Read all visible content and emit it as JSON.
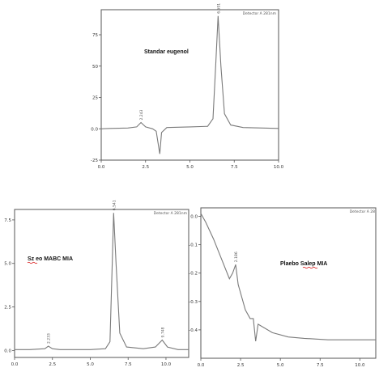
{
  "chart_data": [
    {
      "type": "line",
      "title": "Standar eugenol",
      "detector": "Detector A 281nm",
      "xlim": [
        0,
        10
      ],
      "ylim": [
        -25,
        95
      ],
      "xticks": [
        "0.0",
        "2.5",
        "5.0",
        "7.5",
        "10.0"
      ],
      "yticks": [
        "-25",
        "0.0",
        "25",
        "50",
        "75"
      ],
      "peak_labels": [
        {
          "text": "2.243",
          "x": 2.24,
          "y": 5
        },
        {
          "text": "6.591",
          "x": 6.59,
          "y": 90
        }
      ],
      "series": [
        {
          "values": [
            [
              0,
              0
            ],
            [
              0.5,
              0.3
            ],
            [
              1.5,
              0.6
            ],
            [
              2.0,
              1.5
            ],
            [
              2.24,
              5
            ],
            [
              2.5,
              1.5
            ],
            [
              2.9,
              0
            ],
            [
              3.1,
              -2
            ],
            [
              3.3,
              -20
            ],
            [
              3.4,
              -3
            ],
            [
              3.7,
              1
            ],
            [
              5.0,
              1.5
            ],
            [
              6.0,
              2
            ],
            [
              6.3,
              8
            ],
            [
              6.45,
              50
            ],
            [
              6.59,
              90
            ],
            [
              6.75,
              50
            ],
            [
              6.95,
              12
            ],
            [
              7.3,
              3
            ],
            [
              8.0,
              1
            ],
            [
              10.0,
              0.3
            ]
          ]
        }
      ]
    },
    {
      "type": "line",
      "title": "Sz eo MABC MIA",
      "detector": "Detector A 281nm",
      "xlim": [
        0,
        11.5
      ],
      "ylim": [
        -0.4,
        8.1
      ],
      "xticks": [
        "0.0",
        "2.5",
        "5.0",
        "7.5",
        "10.0"
      ],
      "yticks": [
        "0.0",
        "2.5",
        "5.0",
        "7.5"
      ],
      "peak_labels": [
        {
          "text": "2.233",
          "x": 2.23,
          "y": 0.25
        },
        {
          "text": "6.541",
          "x": 6.54,
          "y": 7.9
        },
        {
          "text": "9.748",
          "x": 9.75,
          "y": 0.6
        }
      ],
      "series": [
        {
          "values": [
            [
              0,
              0.05
            ],
            [
              1.0,
              0.05
            ],
            [
              2.0,
              0.1
            ],
            [
              2.23,
              0.25
            ],
            [
              2.5,
              0.1
            ],
            [
              3.0,
              0.05
            ],
            [
              5.0,
              0.05
            ],
            [
              6.0,
              0.1
            ],
            [
              6.3,
              0.5
            ],
            [
              6.45,
              5
            ],
            [
              6.54,
              7.9
            ],
            [
              6.7,
              5
            ],
            [
              6.95,
              1
            ],
            [
              7.4,
              0.2
            ],
            [
              8.5,
              0.1
            ],
            [
              9.3,
              0.2
            ],
            [
              9.75,
              0.6
            ],
            [
              10.1,
              0.2
            ],
            [
              10.8,
              0.05
            ],
            [
              11.5,
              0.05
            ]
          ]
        }
      ]
    },
    {
      "type": "line",
      "title": "Plaebo Salep MIA",
      "detector": "Detector A 28",
      "xlim": [
        0,
        11
      ],
      "ylim": [
        -0.5,
        0.03
      ],
      "xticks": [
        "0.0",
        "2.5",
        "5.0",
        "7.5",
        "10.0"
      ],
      "yticks": [
        "0.0",
        "-0.1",
        "-0.2",
        "-0.3",
        "-0.4"
      ],
      "peak_labels": [
        {
          "text": "2.186",
          "x": 2.19,
          "y": -0.17
        }
      ],
      "series": [
        {
          "values": [
            [
              0,
              0.01
            ],
            [
              0.3,
              -0.02
            ],
            [
              0.8,
              -0.08
            ],
            [
              1.3,
              -0.15
            ],
            [
              1.8,
              -0.22
            ],
            [
              2.0,
              -0.2
            ],
            [
              2.19,
              -0.17
            ],
            [
              2.35,
              -0.24
            ],
            [
              2.8,
              -0.33
            ],
            [
              3.1,
              -0.36
            ],
            [
              3.3,
              -0.36
            ],
            [
              3.45,
              -0.44
            ],
            [
              3.6,
              -0.38
            ],
            [
              4.5,
              -0.41
            ],
            [
              5.5,
              -0.425
            ],
            [
              6.5,
              -0.43
            ],
            [
              8.0,
              -0.435
            ],
            [
              9.5,
              -0.435
            ],
            [
              11.0,
              -0.435
            ]
          ]
        }
      ]
    }
  ]
}
